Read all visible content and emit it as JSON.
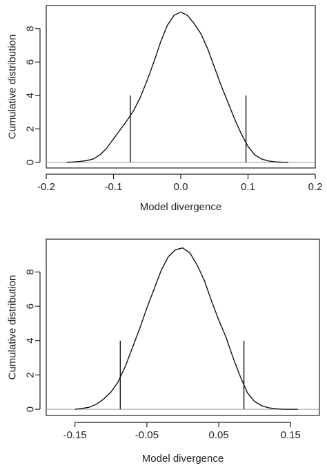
{
  "chart_data": [
    {
      "type": "line",
      "title": "",
      "xlabel": "Model divergence",
      "ylabel": "Cumulative distribution",
      "xlim": [
        -0.2,
        0.2
      ],
      "ylim": [
        0,
        9
      ],
      "xticks": [
        -0.2,
        -0.1,
        0.0,
        0.1,
        0.2
      ],
      "xtick_labels": [
        "-0.2",
        "-0.1",
        "0.0",
        "0.1",
        "0.2"
      ],
      "yticks": [
        0,
        2,
        4,
        6,
        8
      ],
      "ytick_labels": [
        "0",
        "2",
        "4",
        "6",
        "8"
      ],
      "baseline_y": 0,
      "grid": false,
      "series": [
        {
          "x": [
            -0.17,
            -0.16,
            -0.15,
            -0.14,
            -0.13,
            -0.12,
            -0.11,
            -0.1,
            -0.09,
            -0.08,
            -0.07,
            -0.06,
            -0.05,
            -0.04,
            -0.03,
            -0.02,
            -0.01,
            0.0,
            0.01,
            0.02,
            0.03,
            0.04,
            0.05,
            0.06,
            0.07,
            0.08,
            0.09,
            0.1,
            0.11,
            0.12,
            0.13,
            0.14,
            0.15,
            0.16
          ],
          "y": [
            0.0,
            0.02,
            0.05,
            0.1,
            0.2,
            0.45,
            0.85,
            1.4,
            1.95,
            2.5,
            3.1,
            3.9,
            4.9,
            6.0,
            7.2,
            8.2,
            8.8,
            9.0,
            8.8,
            8.3,
            7.7,
            6.8,
            5.7,
            4.6,
            3.6,
            2.6,
            1.7,
            0.95,
            0.45,
            0.2,
            0.08,
            0.03,
            0.01,
            0.0
          ]
        }
      ],
      "vertical_lines": [
        {
          "x": -0.075,
          "y_top": 4.0
        },
        {
          "x": 0.097,
          "y_top": 4.0
        }
      ]
    },
    {
      "type": "line",
      "title": "",
      "xlabel": "Model divergence",
      "ylabel": "Cumulative distribution",
      "xlim": [
        -0.19,
        0.19
      ],
      "ylim": [
        0,
        9.5
      ],
      "xticks": [
        -0.15,
        -0.05,
        0.05,
        0.15
      ],
      "xtick_labels": [
        "-0.15",
        "-0.05",
        "0.05",
        "0.15"
      ],
      "yticks": [
        0,
        2,
        4,
        6,
        8
      ],
      "ytick_labels": [
        "0",
        "2",
        "4",
        "6",
        "8"
      ],
      "baseline_y": 0,
      "grid": false,
      "series": [
        {
          "x": [
            -0.15,
            -0.14,
            -0.13,
            -0.12,
            -0.11,
            -0.1,
            -0.09,
            -0.08,
            -0.07,
            -0.06,
            -0.05,
            -0.04,
            -0.03,
            -0.02,
            -0.01,
            0.0,
            0.01,
            0.02,
            0.03,
            0.04,
            0.05,
            0.06,
            0.07,
            0.08,
            0.09,
            0.1,
            0.11,
            0.12,
            0.13,
            0.14,
            0.15,
            0.16
          ],
          "y": [
            0.0,
            0.05,
            0.12,
            0.3,
            0.6,
            1.0,
            1.6,
            2.5,
            3.6,
            4.7,
            5.9,
            7.0,
            8.1,
            8.9,
            9.3,
            9.4,
            9.1,
            8.4,
            7.5,
            6.3,
            5.2,
            4.2,
            3.0,
            1.9,
            0.95,
            0.45,
            0.2,
            0.08,
            0.03,
            0.0,
            0.0,
            0.0
          ]
        }
      ],
      "vertical_lines": [
        {
          "x": -0.087,
          "y_top": 4.0
        },
        {
          "x": 0.085,
          "y_top": 4.0
        }
      ]
    }
  ]
}
